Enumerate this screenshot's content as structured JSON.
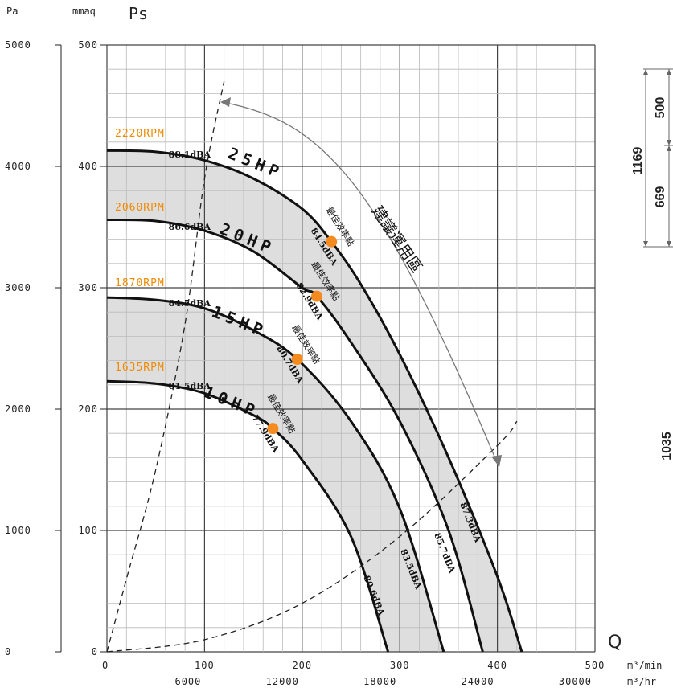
{
  "chart_data": {
    "type": "line",
    "title": "Ps",
    "y_units": {
      "pa": "Pa",
      "mmaq": "mmaq"
    },
    "x_label": "Q",
    "x_units": {
      "cmm": "m³/min",
      "cmh": "m³/hr"
    },
    "xlim": [
      0,
      500
    ],
    "ylim": [
      0,
      500
    ],
    "x_ticks": [
      "0",
      "100",
      "200",
      "300",
      "400",
      "500"
    ],
    "x2_ticks": [
      "6000",
      "12000",
      "18000",
      "24000",
      "30000"
    ],
    "y_ticks_mmaq": [
      "0",
      "100",
      "200",
      "300",
      "400",
      "500"
    ],
    "y_ticks_pa": [
      "0",
      "1000",
      "2000",
      "3000",
      "4000",
      "5000"
    ],
    "grid": true,
    "series": [
      {
        "name": "25HP",
        "rpm": "2220RPM",
        "x": [
          0,
          50,
          100,
          150,
          200,
          230,
          260,
          300,
          350,
          400,
          425
        ],
        "y": [
          413,
          412,
          405,
          390,
          365,
          338,
          303,
          245,
          160,
          62,
          0
        ]
      },
      {
        "name": "20HP",
        "rpm": "2060RPM",
        "x": [
          0,
          50,
          100,
          150,
          200,
          215,
          250,
          300,
          350,
          385
        ],
        "y": [
          356,
          355,
          347,
          330,
          300,
          293,
          255,
          190,
          100,
          0
        ]
      },
      {
        "name": "15HP",
        "rpm": "1870RPM",
        "x": [
          0,
          50,
          100,
          150,
          195,
          250,
          300,
          345
        ],
        "y": [
          292,
          290,
          283,
          265,
          241,
          190,
          118,
          0
        ]
      },
      {
        "name": "10HP",
        "rpm": "1635RPM",
        "x": [
          0,
          50,
          100,
          150,
          170,
          200,
          250,
          288
        ],
        "y": [
          223,
          221,
          213,
          195,
          184,
          158,
          95,
          0
        ]
      }
    ],
    "shaded_bands": [
      {
        "between": [
          "25HP",
          "20HP"
        ]
      },
      {
        "between": [
          "15HP",
          "10HP"
        ]
      }
    ],
    "system_curves": [
      {
        "style": "dashed",
        "x": [
          0,
          20,
          50,
          80,
          100,
          120
        ],
        "y": [
          0,
          60,
          150,
          270,
          390,
          470
        ]
      },
      {
        "style": "dashed",
        "x": [
          0,
          100,
          200,
          300,
          400,
          420
        ],
        "y": [
          0,
          10,
          40,
          95,
          170,
          190
        ]
      }
    ],
    "best_efficiency_points": [
      {
        "label": "最佳效率點",
        "x": 230,
        "y": 338,
        "dba": "84.5dBA"
      },
      {
        "label": "最佳效率點",
        "x": 215,
        "y": 293,
        "dba": "82.9dBA"
      },
      {
        "label": "最佳效率點",
        "x": 195,
        "y": 241,
        "dba": "80.7dBA"
      },
      {
        "label": "最佳效率點",
        "x": 170,
        "y": 184,
        "dba": "77.9dBA"
      }
    ],
    "noise_labels": {
      "left": [
        "88.1dBA",
        "86.6dBA",
        "84.5dBA",
        "81.5dBA"
      ],
      "right": [
        "87.3dBA",
        "85.7dBA",
        "83.5dBA",
        "80.6dBA"
      ]
    },
    "recommended_zone_label": "建議運用區",
    "point_color": "#f58a1f",
    "rpm_color": "#f08a00",
    "band_color": "#dedede"
  },
  "side_dims": {
    "total": "1169",
    "top": "500",
    "bottom": "669",
    "partial": "1035"
  }
}
